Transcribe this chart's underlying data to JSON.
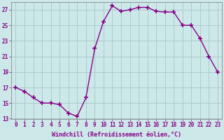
{
  "x": [
    0,
    1,
    2,
    3,
    4,
    5,
    6,
    7,
    8,
    9,
    10,
    11,
    12,
    13,
    14,
    15,
    16,
    17,
    18,
    19,
    20,
    21,
    22,
    23
  ],
  "y": [
    17.0,
    16.5,
    15.7,
    15.0,
    15.0,
    14.8,
    13.7,
    13.3,
    15.7,
    22.0,
    25.5,
    27.5,
    26.8,
    27.0,
    27.3,
    27.3,
    26.8,
    26.7,
    26.7,
    25.0,
    25.0,
    23.3,
    21.0,
    19.0
  ],
  "line_color": "#880088",
  "marker": "+",
  "markersize": 4,
  "markeredgewidth": 1.2,
  "bg_color": "#cce8e8",
  "grid_color": "#aacccc",
  "xlabel": "Windchill (Refroidissement éolien,°C)",
  "ylim": [
    13,
    28
  ],
  "yticks": [
    13,
    15,
    17,
    19,
    21,
    23,
    25,
    27
  ],
  "xticks": [
    0,
    1,
    2,
    3,
    4,
    5,
    6,
    7,
    8,
    9,
    10,
    11,
    12,
    13,
    14,
    15,
    16,
    17,
    18,
    19,
    20,
    21,
    22,
    23
  ],
  "axis_fontsize": 6.0,
  "tick_fontsize": 5.5,
  "linewidth": 1.0
}
